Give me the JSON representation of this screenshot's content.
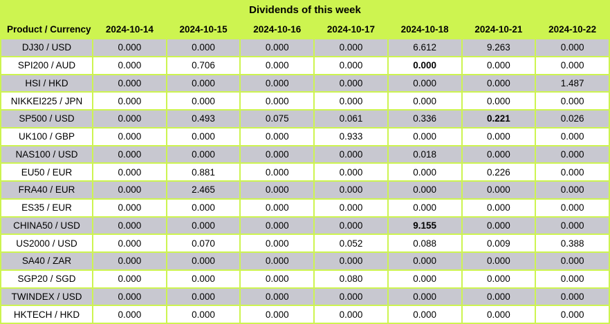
{
  "title": "Dividends of this week",
  "columns": {
    "corner": "Product / Currency",
    "dates": [
      "2024-10-14",
      "2024-10-15",
      "2024-10-16",
      "2024-10-17",
      "2024-10-18",
      "2024-10-21",
      "2024-10-22"
    ]
  },
  "colors": {
    "accent_green": "#CDF450",
    "alt_row_gray": "#C8C8D0",
    "row_white": "#FFFFFF",
    "text": "#000000"
  },
  "chart_data": {
    "type": "table",
    "title": "Dividends of this week",
    "categories": [
      "2024-10-14",
      "2024-10-15",
      "2024-10-16",
      "2024-10-17",
      "2024-10-18",
      "2024-10-21",
      "2024-10-22"
    ],
    "series": [
      {
        "name": "DJ30 / USD",
        "values": [
          0.0,
          0.0,
          0.0,
          0.0,
          6.612,
          9.263,
          0.0
        ]
      },
      {
        "name": "SPI200 / AUD",
        "values": [
          0.0,
          0.706,
          0.0,
          0.0,
          0.0,
          0.0,
          0.0
        ]
      },
      {
        "name": "HSI / HKD",
        "values": [
          0.0,
          0.0,
          0.0,
          0.0,
          0.0,
          0.0,
          1.487
        ]
      },
      {
        "name": "NIKKEI225 / JPN",
        "values": [
          0.0,
          0.0,
          0.0,
          0.0,
          0.0,
          0.0,
          0.0
        ]
      },
      {
        "name": "SP500 / USD",
        "values": [
          0.0,
          0.493,
          0.075,
          0.061,
          0.336,
          0.221,
          0.026
        ]
      },
      {
        "name": "UK100 / GBP",
        "values": [
          0.0,
          0.0,
          0.0,
          0.933,
          0.0,
          0.0,
          0.0
        ]
      },
      {
        "name": "NAS100 / USD",
        "values": [
          0.0,
          0.0,
          0.0,
          0.0,
          0.018,
          0.0,
          0.0
        ]
      },
      {
        "name": "EU50 / EUR",
        "values": [
          0.0,
          0.881,
          0.0,
          0.0,
          0.0,
          0.226,
          0.0
        ]
      },
      {
        "name": "FRA40 / EUR",
        "values": [
          0.0,
          2.465,
          0.0,
          0.0,
          0.0,
          0.0,
          0.0
        ]
      },
      {
        "name": "ES35 / EUR",
        "values": [
          0.0,
          0.0,
          0.0,
          0.0,
          0.0,
          0.0,
          0.0
        ]
      },
      {
        "name": "CHINA50 / USD",
        "values": [
          0.0,
          0.0,
          0.0,
          0.0,
          9.155,
          0.0,
          0.0
        ]
      },
      {
        "name": "US2000 / USD",
        "values": [
          0.0,
          0.07,
          0.0,
          0.052,
          0.088,
          0.009,
          0.388
        ]
      },
      {
        "name": "SA40 / ZAR",
        "values": [
          0.0,
          0.0,
          0.0,
          0.0,
          0.0,
          0.0,
          0.0
        ]
      },
      {
        "name": "SGP20 / SGD",
        "values": [
          0.0,
          0.0,
          0.0,
          0.08,
          0.0,
          0.0,
          0.0
        ]
      },
      {
        "name": "TWINDEX / USD",
        "values": [
          0.0,
          0.0,
          0.0,
          0.0,
          0.0,
          0.0,
          0.0
        ]
      },
      {
        "name": "HKTECH / HKD",
        "values": [
          0.0,
          0.0,
          0.0,
          0.0,
          0.0,
          0.0,
          0.0
        ]
      }
    ]
  },
  "rows": [
    {
      "product": "DJ30 / USD",
      "values": [
        "0.000",
        "0.000",
        "0.000",
        "0.000",
        "6.612",
        "9.263",
        "0.000"
      ],
      "bold": []
    },
    {
      "product": "SPI200 / AUD",
      "values": [
        "0.000",
        "0.706",
        "0.000",
        "0.000",
        "0.000",
        "0.000",
        "0.000"
      ],
      "bold": [
        4
      ]
    },
    {
      "product": "HSI / HKD",
      "values": [
        "0.000",
        "0.000",
        "0.000",
        "0.000",
        "0.000",
        "0.000",
        "1.487"
      ],
      "bold": []
    },
    {
      "product": "NIKKEI225 / JPN",
      "values": [
        "0.000",
        "0.000",
        "0.000",
        "0.000",
        "0.000",
        "0.000",
        "0.000"
      ],
      "bold": []
    },
    {
      "product": "SP500 / USD",
      "values": [
        "0.000",
        "0.493",
        "0.075",
        "0.061",
        "0.336",
        "0.221",
        "0.026"
      ],
      "bold": [
        5
      ]
    },
    {
      "product": "UK100 / GBP",
      "values": [
        "0.000",
        "0.000",
        "0.000",
        "0.933",
        "0.000",
        "0.000",
        "0.000"
      ],
      "bold": []
    },
    {
      "product": "NAS100 / USD",
      "values": [
        "0.000",
        "0.000",
        "0.000",
        "0.000",
        "0.018",
        "0.000",
        "0.000"
      ],
      "bold": []
    },
    {
      "product": "EU50 / EUR",
      "values": [
        "0.000",
        "0.881",
        "0.000",
        "0.000",
        "0.000",
        "0.226",
        "0.000"
      ],
      "bold": []
    },
    {
      "product": "FRA40 / EUR",
      "values": [
        "0.000",
        "2.465",
        "0.000",
        "0.000",
        "0.000",
        "0.000",
        "0.000"
      ],
      "bold": []
    },
    {
      "product": "ES35 / EUR",
      "values": [
        "0.000",
        "0.000",
        "0.000",
        "0.000",
        "0.000",
        "0.000",
        "0.000"
      ],
      "bold": []
    },
    {
      "product": "CHINA50 / USD",
      "values": [
        "0.000",
        "0.000",
        "0.000",
        "0.000",
        "9.155",
        "0.000",
        "0.000"
      ],
      "bold": [
        4
      ]
    },
    {
      "product": "US2000 / USD",
      "values": [
        "0.000",
        "0.070",
        "0.000",
        "0.052",
        "0.088",
        "0.009",
        "0.388"
      ],
      "bold": []
    },
    {
      "product": "SA40 / ZAR",
      "values": [
        "0.000",
        "0.000",
        "0.000",
        "0.000",
        "0.000",
        "0.000",
        "0.000"
      ],
      "bold": []
    },
    {
      "product": "SGP20 / SGD",
      "values": [
        "0.000",
        "0.000",
        "0.000",
        "0.080",
        "0.000",
        "0.000",
        "0.000"
      ],
      "bold": []
    },
    {
      "product": "TWINDEX / USD",
      "values": [
        "0.000",
        "0.000",
        "0.000",
        "0.000",
        "0.000",
        "0.000",
        "0.000"
      ],
      "bold": []
    },
    {
      "product": "HKTECH / HKD",
      "values": [
        "0.000",
        "0.000",
        "0.000",
        "0.000",
        "0.000",
        "0.000",
        "0.000"
      ],
      "bold": []
    }
  ]
}
